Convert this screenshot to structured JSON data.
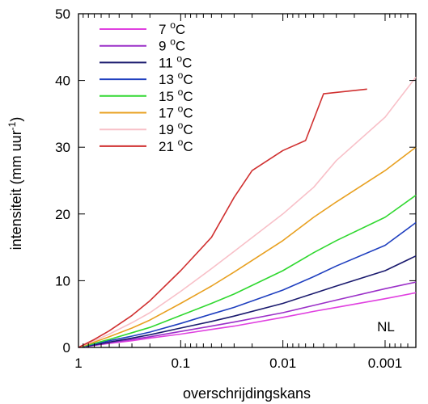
{
  "chart_data": {
    "type": "line",
    "title": "",
    "xlabel": "overschrijdingskans",
    "ylabel": "intensiteit (mm uur",
    "ylabel_sup": "-1",
    "ylabel_close": ")",
    "x_scale": "log",
    "x_reversed": true,
    "xlim": [
      1,
      0.0005
    ],
    "ylim": [
      0,
      50
    ],
    "x_ticks": [
      1,
      0.1,
      0.01,
      0.001
    ],
    "x_tick_labels": [
      "1",
      "0.1",
      "0.01",
      "0.001"
    ],
    "y_ticks": [
      0,
      10,
      20,
      30,
      40,
      50
    ],
    "y_tick_labels": [
      "0",
      "10",
      "20",
      "30",
      "40",
      "50"
    ],
    "grid": false,
    "legend_position": "top-left",
    "annotation": "NL",
    "series": [
      {
        "name": "7",
        "unit_sup": "o",
        "unit": "C",
        "color": "#e040e0",
        "x": [
          1,
          0.7,
          0.5,
          0.3,
          0.2,
          0.1,
          0.05,
          0.03,
          0.01,
          0.005,
          0.003,
          0.001,
          0.0005
        ],
        "y": [
          0,
          0.3,
          0.6,
          1.0,
          1.4,
          2.0,
          2.7,
          3.2,
          4.5,
          5.4,
          6.0,
          7.3,
          8.2
        ]
      },
      {
        "name": "9",
        "unit_sup": "o",
        "unit": "C",
        "color": "#9b30c8",
        "x": [
          1,
          0.7,
          0.5,
          0.3,
          0.2,
          0.1,
          0.05,
          0.03,
          0.01,
          0.005,
          0.003,
          0.001,
          0.0005
        ],
        "y": [
          0,
          0.3,
          0.7,
          1.2,
          1.6,
          2.4,
          3.2,
          3.8,
          5.2,
          6.3,
          7.1,
          8.8,
          9.8
        ]
      },
      {
        "name": "11",
        "unit_sup": "o",
        "unit": "C",
        "color": "#1a1a6e",
        "x": [
          1,
          0.7,
          0.5,
          0.3,
          0.2,
          0.1,
          0.05,
          0.03,
          0.01,
          0.005,
          0.003,
          0.001,
          0.0005
        ],
        "y": [
          0,
          0.4,
          0.8,
          1.4,
          1.9,
          2.9,
          3.9,
          4.7,
          6.6,
          8.1,
          9.2,
          11.5,
          13.7
        ]
      },
      {
        "name": "13",
        "unit_sup": "o",
        "unit": "C",
        "color": "#1f3fbf",
        "x": [
          1,
          0.7,
          0.5,
          0.3,
          0.2,
          0.1,
          0.05,
          0.03,
          0.01,
          0.005,
          0.003,
          0.001,
          0.0005
        ],
        "y": [
          0,
          0.5,
          1.0,
          1.7,
          2.3,
          3.6,
          5.0,
          6.0,
          8.6,
          10.6,
          12.2,
          15.3,
          18.7
        ]
      },
      {
        "name": "15",
        "unit_sup": "o",
        "unit": "C",
        "color": "#30d830",
        "x": [
          1,
          0.7,
          0.5,
          0.3,
          0.2,
          0.1,
          0.05,
          0.03,
          0.01,
          0.005,
          0.003,
          0.001,
          0.0005
        ],
        "y": [
          0,
          0.6,
          1.2,
          2.2,
          3.0,
          4.8,
          6.6,
          8.0,
          11.5,
          14.2,
          16.0,
          19.5,
          22.8
        ]
      },
      {
        "name": "17",
        "unit_sup": "o",
        "unit": "C",
        "color": "#e8a020",
        "x": [
          1,
          0.7,
          0.5,
          0.3,
          0.2,
          0.1,
          0.05,
          0.03,
          0.01,
          0.005,
          0.003,
          0.001,
          0.0005
        ],
        "y": [
          0,
          0.8,
          1.6,
          2.9,
          4.1,
          6.6,
          9.2,
          11.3,
          16.0,
          19.5,
          21.8,
          26.5,
          30.0
        ]
      },
      {
        "name": "19",
        "unit_sup": "o",
        "unit": "C",
        "color": "#f8c0c8",
        "x": [
          1,
          0.7,
          0.5,
          0.3,
          0.2,
          0.1,
          0.05,
          0.03,
          0.01,
          0.005,
          0.003,
          0.001,
          0.0005
        ],
        "y": [
          0,
          1.0,
          2.0,
          3.7,
          5.2,
          8.4,
          11.8,
          14.4,
          20.0,
          24.0,
          28.0,
          34.5,
          40.5
        ]
      },
      {
        "name": "21",
        "unit_sup": "o",
        "unit": "C",
        "color": "#d03030",
        "x": [
          1,
          0.7,
          0.5,
          0.3,
          0.2,
          0.1,
          0.05,
          0.03,
          0.02,
          0.01,
          0.006,
          0.004,
          0.0015
        ],
        "y": [
          0,
          1.2,
          2.5,
          4.8,
          7.0,
          11.5,
          16.5,
          22.5,
          26.5,
          29.5,
          31.0,
          38.0,
          38.7
        ]
      }
    ]
  }
}
